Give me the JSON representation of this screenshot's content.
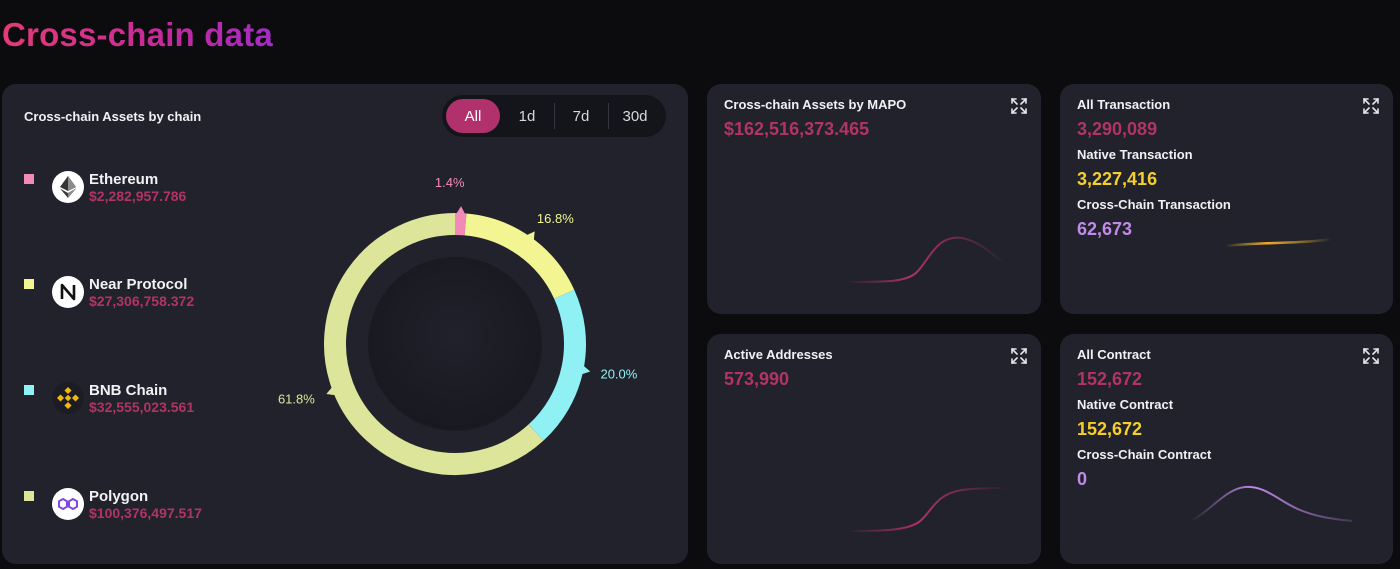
{
  "page": {
    "title": "Cross-chain data"
  },
  "colors": {
    "accent": "#b0316b",
    "value_red": "#b23464",
    "native_yellow": "#f5cf2a",
    "crosschain_purple": "#c08ae6",
    "ethereum": "#f28ab8",
    "near": "#f3f592",
    "bnb": "#8ff1f3",
    "polygon": "#dde59a"
  },
  "main": {
    "title": "Cross-chain Assets by chain",
    "tabs": [
      {
        "label": "All",
        "active": true
      },
      {
        "label": "1d",
        "active": false
      },
      {
        "label": "7d",
        "active": false
      },
      {
        "label": "30d",
        "active": false
      }
    ],
    "legend": [
      {
        "name": "Ethereum",
        "value": "$2,282,957.786",
        "icon": "ethereum-icon"
      },
      {
        "name": "Near Protocol",
        "value": "$27,306,758.372",
        "icon": "near-icon"
      },
      {
        "name": "BNB Chain",
        "value": "$32,555,023.561",
        "icon": "bnb-icon"
      },
      {
        "name": "Polygon",
        "value": "$100,376,497.517",
        "icon": "polygon-icon"
      }
    ]
  },
  "chart_data": {
    "type": "pie",
    "categories": [
      "Ethereum",
      "Near Protocol",
      "BNB Chain",
      "Polygon"
    ],
    "values": [
      1.4,
      16.8,
      20.0,
      61.8
    ],
    "labels": [
      "1.4%",
      "16.8%",
      "20.0%",
      "61.8%"
    ],
    "colors": [
      "#f28ab8",
      "#f3f592",
      "#8ff1f3",
      "#dde59a"
    ],
    "title": "",
    "legend": "left"
  },
  "assets_card": {
    "title": "Cross-chain Assets by MAPO",
    "value": "$162,516,373.465"
  },
  "transactions_card": {
    "title": "All Transaction",
    "value": "3,290,089",
    "native_label": "Native Transaction",
    "native_value": "3,227,416",
    "cross_label": "Cross-Chain Transaction",
    "cross_value": "62,673"
  },
  "addresses_card": {
    "title": "Active Addresses",
    "value": "573,990"
  },
  "contracts_card": {
    "title": "All Contract",
    "value": "152,672",
    "native_label": "Native Contract",
    "native_value": "152,672",
    "cross_label": "Cross-Chain Contract",
    "cross_value": "0"
  }
}
